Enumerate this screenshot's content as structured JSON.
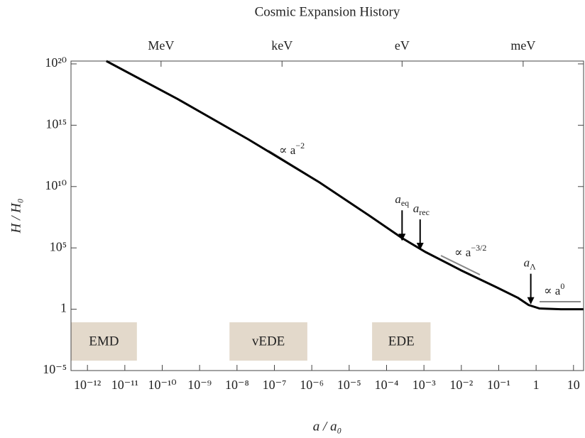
{
  "chart_data": {
    "type": "line",
    "title": "Cosmic Expansion History",
    "x_label": "a / a₀",
    "y_label": "H / H₀",
    "log_x": true,
    "log_y": true,
    "xlim": [
      3.63e-13,
      18.6
    ],
    "ylim": [
      1e-05,
      1.7e+20
    ],
    "xticks": [
      {
        "value": 1e-12,
        "label": "10⁻¹²"
      },
      {
        "value": 1e-11,
        "label": "10⁻¹¹"
      },
      {
        "value": 1e-10,
        "label": "10⁻¹⁰"
      },
      {
        "value": 1e-09,
        "label": "10⁻⁹"
      },
      {
        "value": 1e-08,
        "label": "10⁻⁸"
      },
      {
        "value": 1e-07,
        "label": "10⁻⁷"
      },
      {
        "value": 1e-06,
        "label": "10⁻⁶"
      },
      {
        "value": 1e-05,
        "label": "10⁻⁵"
      },
      {
        "value": 0.0001,
        "label": "10⁻⁴"
      },
      {
        "value": 0.001,
        "label": "10⁻³"
      },
      {
        "value": 0.01,
        "label": "10⁻²"
      },
      {
        "value": 0.1,
        "label": "10⁻¹"
      },
      1,
      10
    ],
    "yticks": [
      {
        "value": 1e-05,
        "label": "10⁻⁵"
      },
      1,
      {
        "value": 100000.0,
        "label": "10⁵"
      },
      {
        "value": 10000000000.0,
        "label": "10¹⁰"
      },
      {
        "value": 1000000000000000.0,
        "label": "10¹⁵"
      },
      {
        "value": 1e+20,
        "label": "10²⁰"
      }
    ],
    "x2ticks": [
      {
        "value": 9.3e-11,
        "label": "MeV"
      },
      {
        "value": 1.6e-07,
        "label": "keV"
      },
      {
        "value": 0.00026,
        "label": "eV"
      },
      {
        "value": 0.45,
        "label": "meV"
      }
    ],
    "x": [
      3.2e-12,
      2.6e-10,
      2e-08,
      1.6e-06,
      3.4e-05,
      0.00026,
      0.0011,
      0.01,
      0.089,
      0.33,
      0.63,
      1.23,
      4.6,
      18.2
    ],
    "series": [
      {
        "name": "H",
        "color": "#000000",
        "values": [
          1.7e+20,
          1.35e+17,
          71000000000000.0,
          22000000000.0,
          44000000.0,
          630000.0,
          46000.0,
          1450.0,
          60,
          8.3,
          2.2,
          1.15,
          1,
          1
        ]
      }
    ],
    "regions": [
      {
        "label": "EMD",
        "from": 3.63e-13,
        "to": 2.1e-11
      },
      {
        "label": "vEDE",
        "from": 6.3e-09,
        "to": 7.6e-07
      },
      {
        "label": "EDE",
        "from": 4.1e-05,
        "to": 0.0015
      }
    ],
    "markers": [
      {
        "text": "a",
        "sub": "eq",
        "x": 0.00026,
        "y": 430000.0
      },
      {
        "text": "a",
        "sub": "rec",
        "x": 0.00079,
        "y": 78000.0
      },
      {
        "text": "a",
        "sub": "Λ",
        "x": 0.72,
        "y": 2.9
      }
    ],
    "guides": [
      {
        "text": "∝ a",
        "sup": "−2"
      },
      {
        "text": "∝ a",
        "sup": "−3/2"
      },
      {
        "text": "∝ a",
        "sup": "0"
      }
    ]
  }
}
